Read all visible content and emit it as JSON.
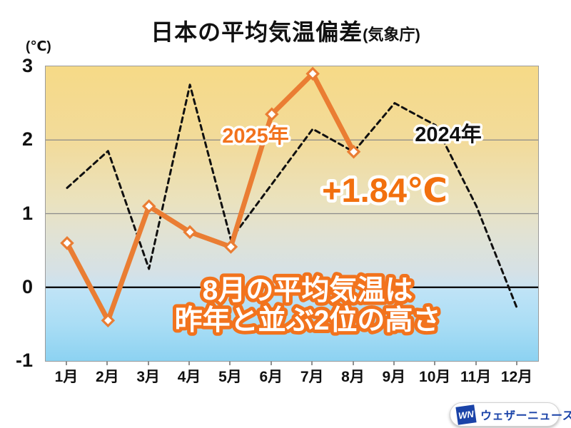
{
  "title": {
    "main": "日本の平均気温偏差",
    "suffix": "(気象庁)"
  },
  "y_axis": {
    "unit": "(℃)",
    "tick_labels": [
      "3",
      "2",
      "1",
      "0",
      "-1"
    ],
    "tick_values": [
      3,
      2,
      1,
      0,
      -1
    ]
  },
  "x_axis": {
    "months": [
      "1月",
      "2月",
      "3月",
      "4月",
      "5月",
      "6月",
      "7月",
      "8月",
      "9月",
      "10月",
      "11月",
      "12月"
    ]
  },
  "annotations": {
    "series_2025_label": "2025年",
    "series_2024_label": "2024年",
    "value_callout": "+1.84℃",
    "message_line1": "8月の平均気温は",
    "message_line2": "昨年と並ぶ2位の高さ"
  },
  "logo": {
    "mark": "WN",
    "text": "ウェザーニュース"
  },
  "colors": {
    "line_orange": "#EA7D33",
    "text_orange": "#F2731D",
    "callout_orange": "#F2700E",
    "dashed_black": "#101010",
    "logo_blue": "#1A43A8",
    "grid_gray": "#8a8a8a",
    "zero_line": "#000000"
  },
  "chart_data": {
    "type": "line",
    "title": "日本の平均気温偏差(気象庁)",
    "ylabel": "(℃)",
    "ylim": [
      -1,
      3
    ],
    "grid": "horizontal",
    "legend": "inline-labels",
    "categories": [
      "1月",
      "2月",
      "3月",
      "4月",
      "5月",
      "6月",
      "7月",
      "8月",
      "9月",
      "10月",
      "11月",
      "12月"
    ],
    "series": [
      {
        "name": "2025年",
        "color": "#EA7D33",
        "style": "solid",
        "marker": "diamond",
        "values": [
          0.6,
          -0.45,
          1.1,
          0.75,
          0.55,
          2.35,
          2.9,
          1.84
        ]
      },
      {
        "name": "2024年",
        "color": "#101010",
        "style": "dashed",
        "marker": "none",
        "values": [
          1.35,
          1.85,
          0.25,
          2.75,
          0.65,
          1.4,
          2.15,
          1.84,
          2.5,
          2.2,
          1.1,
          -0.3
        ]
      }
    ],
    "annotations": [
      "+1.84℃",
      "8月の平均気温は",
      "昨年と並ぶ2位の高さ"
    ]
  }
}
